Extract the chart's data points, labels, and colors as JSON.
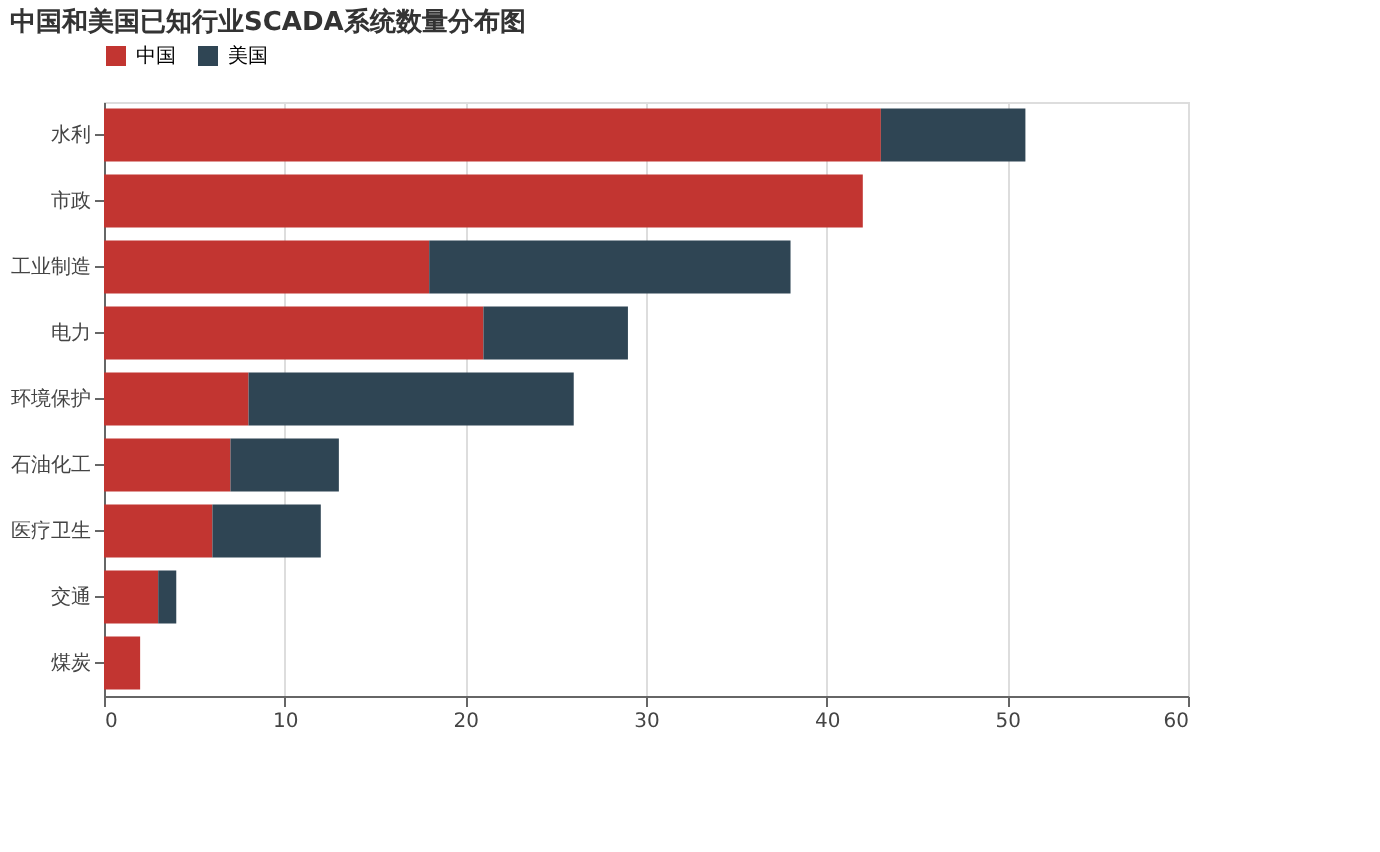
{
  "chart_data": {
    "type": "bar",
    "orientation": "horizontal",
    "stacked": true,
    "title": "中国和美国已知行业SCADA系统数量分布图",
    "categories": [
      "水利",
      "市政",
      "工业制造",
      "电力",
      "环境保护",
      "石油化工",
      "医疗卫生",
      "交通",
      "煤炭"
    ],
    "series": [
      {
        "name": "中国",
        "color": "#c23531",
        "values": [
          43,
          42,
          18,
          21,
          8,
          7,
          6,
          3,
          2
        ]
      },
      {
        "name": "美国",
        "color": "#2f4554",
        "values": [
          8,
          null,
          20,
          8,
          18,
          6,
          6,
          1,
          null
        ]
      }
    ],
    "xlim": [
      0,
      60
    ],
    "xticks": [
      0,
      10,
      20,
      30,
      40,
      50,
      60
    ],
    "grid": "x",
    "legend": "top"
  }
}
